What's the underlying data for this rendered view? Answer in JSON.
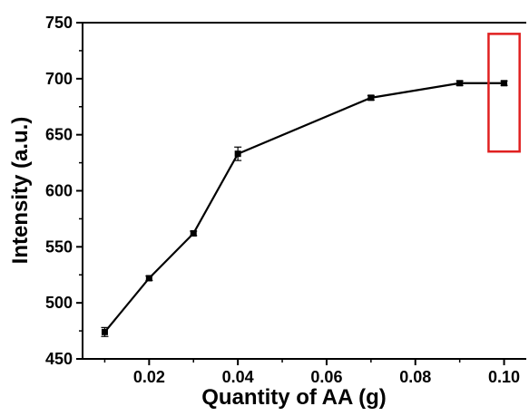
{
  "chart_data": {
    "type": "line",
    "title": "",
    "xlabel": "Quantity of AA (g)",
    "ylabel": "Intensity (a.u.)",
    "xlim": [
      0.005,
      0.105
    ],
    "ylim": [
      450,
      750
    ],
    "x_ticks": [
      0.02,
      0.04,
      0.06,
      0.08,
      0.1
    ],
    "x_tick_labels": [
      "0.02",
      "0.04",
      "0.06",
      "0.08",
      "0.10"
    ],
    "y_ticks": [
      450,
      500,
      550,
      600,
      650,
      700,
      750
    ],
    "y_tick_labels": [
      "450",
      "500",
      "550",
      "600",
      "650",
      "700",
      "750"
    ],
    "grid": false,
    "series": [
      {
        "x": [
          0.01,
          0.02,
          0.03,
          0.04,
          0.07,
          0.09,
          0.1
        ],
        "y": [
          474,
          522,
          562,
          633,
          683,
          696,
          696
        ],
        "error": [
          4,
          2,
          2,
          6,
          2,
          2,
          2
        ],
        "color": "#000000",
        "marker": "square"
      }
    ],
    "annotations": [
      {
        "type": "highlight-box",
        "color": "#e02020",
        "x_range": [
          0.0965,
          0.1035
        ],
        "y_range": [
          635,
          740
        ]
      }
    ]
  }
}
